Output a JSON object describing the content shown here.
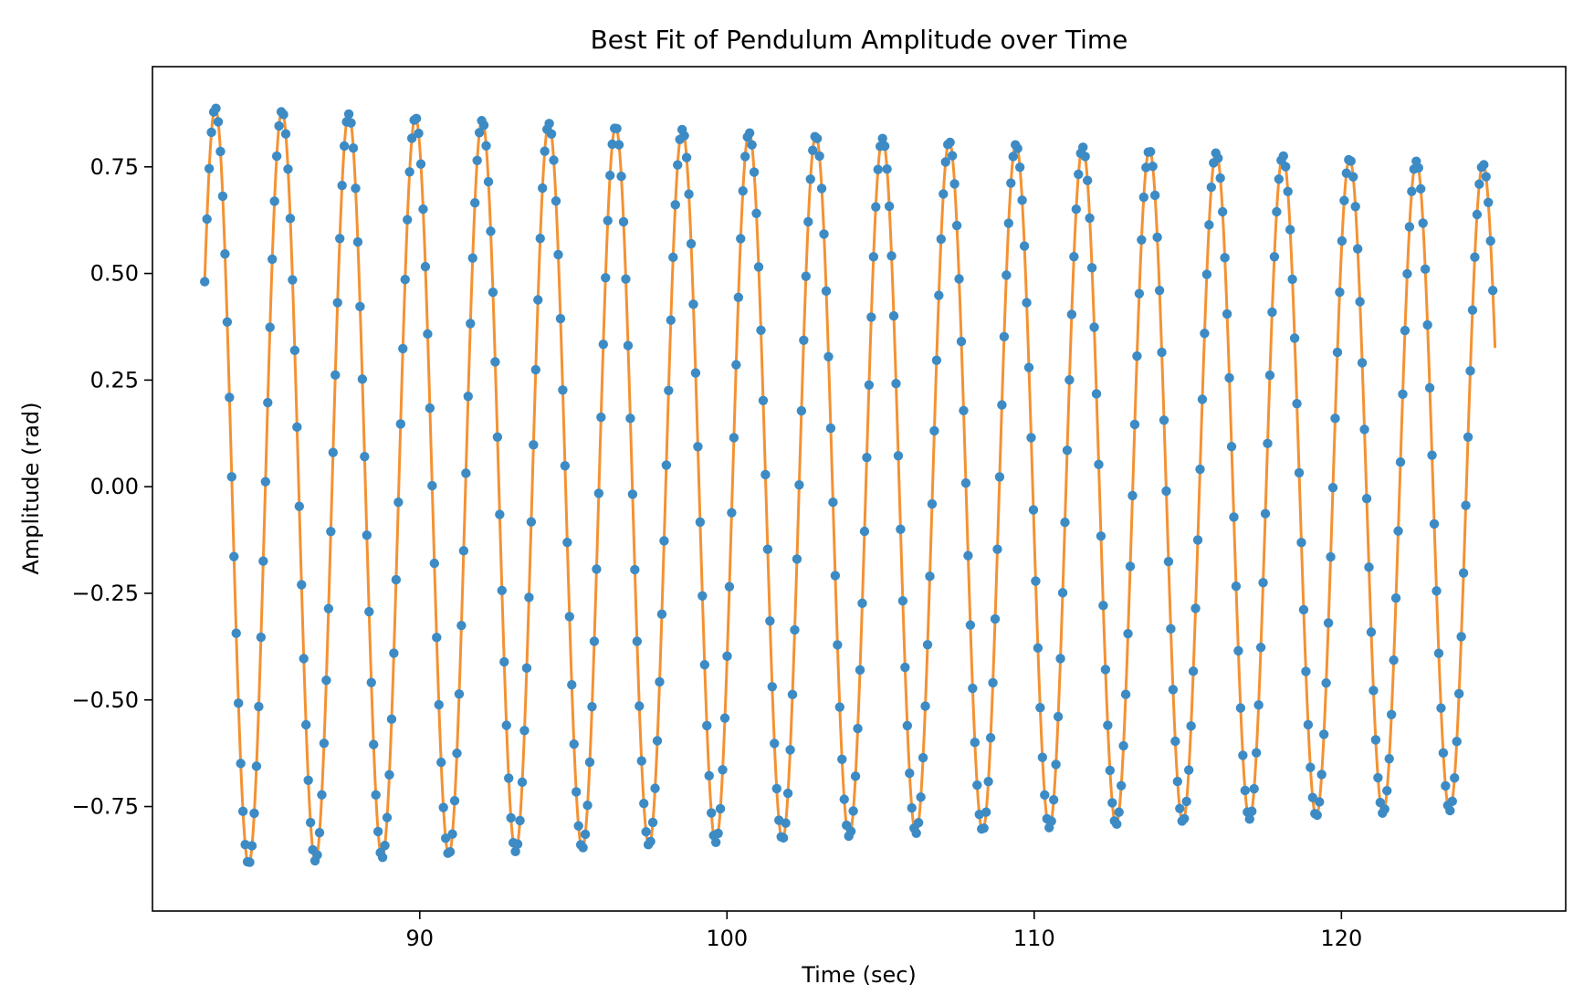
{
  "chart_data": {
    "type": "scatter",
    "title": "Best Fit of Pendulum Amplitude over Time",
    "xlabel": "Time (sec)",
    "ylabel": "Amplitude (rad)",
    "xlim": [
      81.3,
      127.3
    ],
    "ylim": [
      -0.995,
      0.985
    ],
    "xticks": [
      90,
      100,
      110,
      120
    ],
    "xtick_labels": [
      "90",
      "100",
      "110",
      "120"
    ],
    "yticks": [
      -0.75,
      -0.5,
      -0.25,
      0.0,
      0.25,
      0.5,
      0.75
    ],
    "ytick_labels": [
      "−0.75",
      "−0.50",
      "−0.25",
      "0.00",
      "0.25",
      "0.50",
      "0.75"
    ],
    "grid": false,
    "legend": "none",
    "fit_model": {
      "form": "A * exp(-b*(t - t0)) * cos(w*(t - t0) + phi)",
      "A": 0.89,
      "b": 0.0039,
      "w": 2.893,
      "t0": 83.0,
      "phi": -1.0,
      "t_start": 83.0,
      "t_end": 125.0
    },
    "series": [
      {
        "style": "markers",
        "color": "#3d8bc4",
        "sampling": {
          "t_start": 83.0,
          "t_end": 125.0,
          "dt": 0.0733
        },
        "points_note": "y values follow fit_model at sampled times"
      },
      {
        "style": "line",
        "color": "#f39233"
      }
    ]
  }
}
